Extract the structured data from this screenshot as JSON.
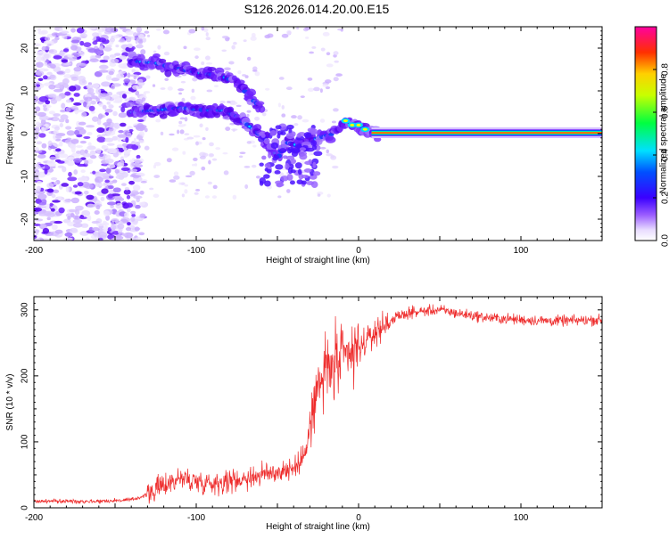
{
  "title": "S126.2026.014.20.00.E15",
  "chart_data": [
    {
      "type": "heatmap",
      "xlabel": "Height of straight line (km)",
      "ylabel": "Frequency (Hz)",
      "xlim": [
        -200,
        150
      ],
      "ylim": [
        -25,
        25
      ],
      "x_ticks": [
        -200,
        -100,
        0,
        100
      ],
      "y_ticks": [
        -20,
        -10,
        0,
        10,
        20
      ],
      "colorbar": {
        "label": "Normalized spectral amplitude",
        "range": [
          0,
          1
        ],
        "ticks": [
          "0.0",
          "0.2",
          "0.4",
          "0.6",
          "0.8"
        ]
      },
      "ridges": [
        {
          "x": [
            -140,
            -125,
            -110,
            -95,
            -85,
            -75,
            -68,
            -60
          ],
          "y": [
            17,
            16.5,
            15,
            14,
            13.5,
            12,
            9,
            6
          ]
        },
        {
          "x": [
            -140,
            -125,
            -110,
            -95,
            -85,
            -75,
            -65,
            -55,
            -50,
            -45,
            -35,
            -25,
            -15,
            -8,
            0,
            5,
            10,
            150
          ],
          "y": [
            5,
            5.5,
            6,
            5.5,
            5.5,
            4,
            1,
            -2,
            -6,
            -2,
            -3,
            -1,
            0,
            3,
            2,
            1,
            0.2,
            0.2
          ]
        }
      ]
    },
    {
      "type": "line",
      "xlabel": "Height of straight line (km)",
      "ylabel": "SNR (10 * v/v)",
      "xlim": [
        -200,
        150
      ],
      "ylim": [
        0,
        320
      ],
      "x_ticks": [
        -200,
        -100,
        0,
        100
      ],
      "y_ticks": [
        0,
        100,
        200,
        300
      ],
      "color": "#ee2a2a",
      "x": [
        -200,
        -180,
        -160,
        -140,
        -130,
        -120,
        -110,
        -100,
        -90,
        -80,
        -70,
        -60,
        -50,
        -40,
        -35,
        -30,
        -25,
        -20,
        -15,
        -10,
        -5,
        0,
        10,
        20,
        30,
        40,
        50,
        60,
        80,
        100,
        120,
        150
      ],
      "values": [
        10,
        10,
        10,
        12,
        20,
        35,
        45,
        40,
        38,
        40,
        45,
        50,
        55,
        60,
        70,
        120,
        180,
        210,
        215,
        220,
        230,
        240,
        265,
        285,
        295,
        298,
        300,
        295,
        288,
        285,
        283,
        285
      ]
    }
  ]
}
